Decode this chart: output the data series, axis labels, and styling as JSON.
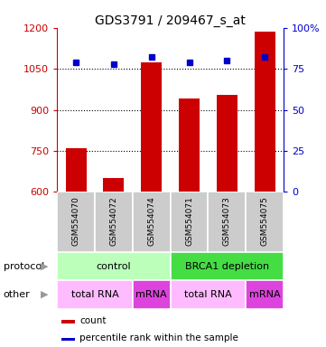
{
  "title": "GDS3791 / 209467_s_at",
  "samples": [
    "GSM554070",
    "GSM554072",
    "GSM554074",
    "GSM554071",
    "GSM554073",
    "GSM554075"
  ],
  "counts": [
    760,
    650,
    1075,
    940,
    955,
    1185
  ],
  "percentile_ranks": [
    79,
    78,
    82,
    79,
    80,
    82
  ],
  "ylim_left": [
    600,
    1200
  ],
  "ylim_right": [
    0,
    100
  ],
  "yticks_left": [
    600,
    750,
    900,
    1050,
    1200
  ],
  "yticks_right": [
    0,
    25,
    50,
    75,
    100
  ],
  "bar_color": "#cc0000",
  "dot_color": "#0000cc",
  "sample_bg_color": "#cccccc",
  "protocol_groups": [
    {
      "label": "control",
      "start": 0,
      "end": 3,
      "color": "#bbffbb"
    },
    {
      "label": "BRCA1 depletion",
      "start": 3,
      "end": 6,
      "color": "#44dd44"
    }
  ],
  "other_groups": [
    {
      "label": "total RNA",
      "start": 0,
      "end": 2,
      "color": "#ffbbff"
    },
    {
      "label": "mRNA",
      "start": 2,
      "end": 3,
      "color": "#dd44dd"
    },
    {
      "label": "total RNA",
      "start": 3,
      "end": 5,
      "color": "#ffbbff"
    },
    {
      "label": "mRNA",
      "start": 5,
      "end": 6,
      "color": "#dd44dd"
    }
  ],
  "legend_count_color": "#cc0000",
  "legend_percentile_color": "#0000cc",
  "legend_count_label": "count",
  "legend_percentile_label": "percentile rank within the sample",
  "grid_yticks": [
    750,
    900,
    1050
  ]
}
